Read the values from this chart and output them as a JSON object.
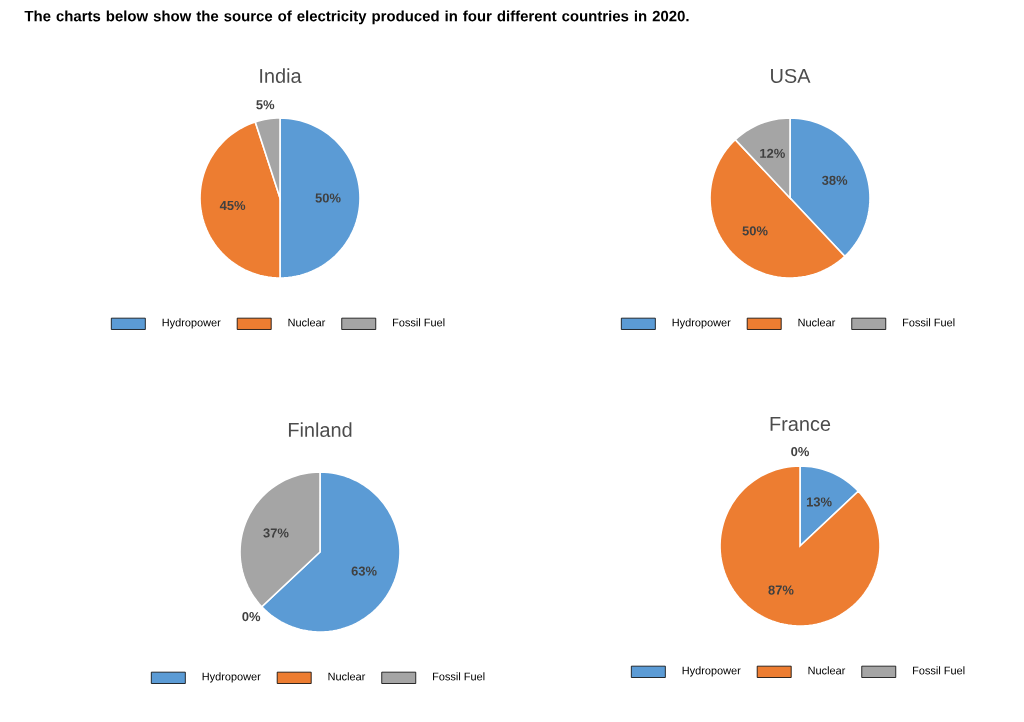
{
  "chart_data": [
    {
      "type": "pie",
      "title": "India",
      "annotations": [
        "The charts below show the source of electricity produced in four different countries in 2020."
      ],
      "categories": [
        "Hydropower",
        "Nuclear",
        "Fossil Fuel"
      ],
      "values": [
        50,
        45,
        5
      ],
      "value_labels": [
        "50%",
        "45%",
        "5%"
      ],
      "colors": [
        "#5b9bd5",
        "#ed7d31",
        "#a5a5a5"
      ],
      "legend": "bottom"
    },
    {
      "type": "pie",
      "title": "USA",
      "categories": [
        "Hydropower",
        "Nuclear",
        "Fossil Fuel"
      ],
      "values": [
        38,
        50,
        12
      ],
      "value_labels": [
        "38%",
        "50%",
        "12%"
      ],
      "colors": [
        "#5b9bd5",
        "#ed7d31",
        "#a5a5a5"
      ],
      "legend": "bottom"
    },
    {
      "type": "pie",
      "title": "Finland",
      "categories": [
        "Hydropower",
        "Nuclear",
        "Fossil Fuel"
      ],
      "values": [
        63,
        0,
        37
      ],
      "value_labels": [
        "63%",
        "0%",
        "37%"
      ],
      "colors": [
        "#5b9bd5",
        "#ed7d31",
        "#a5a5a5"
      ],
      "legend": "bottom"
    },
    {
      "type": "pie",
      "title": "France",
      "categories": [
        "Hydropower",
        "Nuclear",
        "Fossil Fuel"
      ],
      "values": [
        13,
        87,
        0
      ],
      "value_labels": [
        "13%",
        "87%",
        "0%"
      ],
      "colors": [
        "#5b9bd5",
        "#ed7d31",
        "#a5a5a5"
      ],
      "legend": "bottom"
    }
  ]
}
